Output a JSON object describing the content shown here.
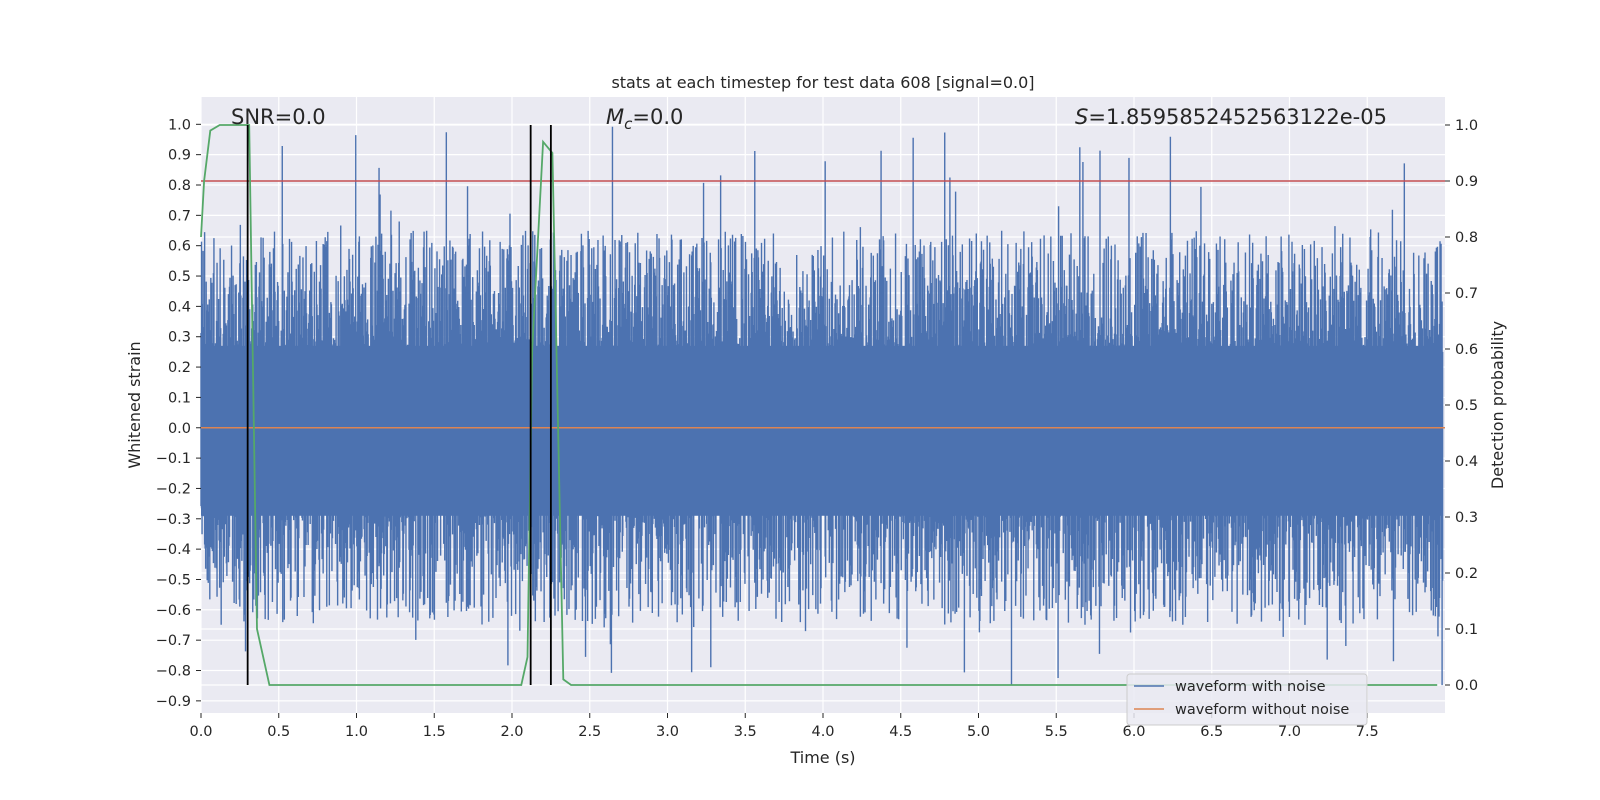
{
  "chart_data": {
    "type": "line",
    "title": "stats at each timestep for test data 608 [signal=0.0]",
    "xlabel": "Time (s)",
    "ylabel": "Whitened strain",
    "y2label": "Detection probability",
    "xlim": [
      0.0,
      8.0
    ],
    "ylim": [
      -0.94,
      1.09
    ],
    "y2lim": [
      -0.05,
      1.05
    ],
    "xticks": [
      "0.0",
      "0.5",
      "1.0",
      "1.5",
      "2.0",
      "2.5",
      "3.0",
      "3.5",
      "4.0",
      "4.5",
      "5.0",
      "5.5",
      "6.0",
      "6.5",
      "7.0",
      "7.5"
    ],
    "yticks": [
      "1.0",
      "0.9",
      "0.8",
      "0.7",
      "0.6",
      "0.5",
      "0.4",
      "0.3",
      "0.2",
      "0.1",
      "0.0",
      "-0.1",
      "-0.2",
      "-0.3",
      "-0.4",
      "-0.5",
      "-0.6",
      "-0.7",
      "-0.8",
      "-0.9"
    ],
    "y2ticks": [
      "1.0",
      "0.9",
      "0.8",
      "0.7",
      "0.6",
      "0.5",
      "0.4",
      "0.3",
      "0.2",
      "0.1",
      "0.0"
    ],
    "grid": true,
    "legend": {
      "placement": "lower-right",
      "entries": [
        "waveform with noise",
        "waveform without noise"
      ]
    },
    "annotations": {
      "snr": "SNR=0.0",
      "mc_symbol": "M",
      "mc_sub": "c",
      "mc_value": "=0.0",
      "s_symbol": "S",
      "s_value": "=1.8595852452563122e-05"
    },
    "series": [
      {
        "name": "waveform with noise",
        "color": "#4c72b0",
        "description_envelope": {
          "typical_max": 0.5,
          "typical_min": -0.5,
          "peak_max": 1.0,
          "peak_min": -0.85,
          "n_samples": 8192
        }
      },
      {
        "name": "waveform without noise",
        "color": "#dd8452",
        "x": [
          0.0,
          8.0
        ],
        "y": [
          0.0,
          0.0
        ]
      },
      {
        "color": "#55a868",
        "axis": "right",
        "x": [
          0.0,
          0.02,
          0.06,
          0.12,
          0.2,
          0.28,
          0.31,
          0.36,
          0.44,
          0.5,
          1.0,
          1.5,
          2.0,
          2.06,
          2.1,
          2.13,
          2.2,
          2.26,
          2.33,
          2.38,
          2.5,
          3.0,
          4.0,
          5.0,
          6.0,
          7.0,
          7.95
        ],
        "y": [
          0.8,
          0.9,
          0.99,
          1.0,
          1.0,
          1.0,
          1.0,
          0.1,
          0.0,
          0.0,
          0.0,
          0.0,
          0.0,
          0.0,
          0.05,
          0.6,
          0.97,
          0.95,
          0.01,
          0.0,
          0.0,
          0.0,
          0.0,
          0.0,
          0.0,
          0.0,
          0.0
        ]
      }
    ],
    "threshold_line": {
      "color": "#c44e52",
      "y2": 0.9
    },
    "vertical_markers": {
      "color": "#000000",
      "x": [
        0.3,
        2.12,
        2.25
      ]
    }
  }
}
